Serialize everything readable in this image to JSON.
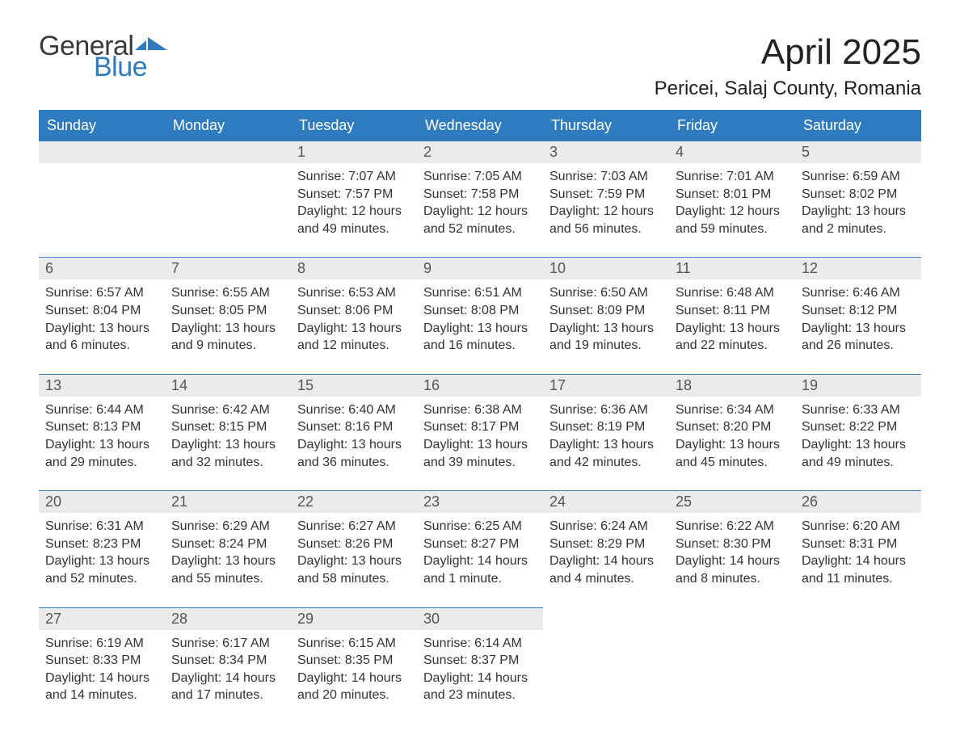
{
  "logo": {
    "line1": "General",
    "line2": "Blue"
  },
  "title": "April 2025",
  "location": "Pericei, Salaj County, Romania",
  "style": {
    "header_bg": "#2f7bbf",
    "header_fg": "#ffffff",
    "row_border": "#2f7bbf",
    "date_bg": "#ebebeb",
    "body_fg": "#333333",
    "page_bg": "#ffffff",
    "title_fontsize": 44,
    "location_fontsize": 24,
    "header_fontsize": 18,
    "detail_fontsize": 16,
    "columns": 7
  },
  "day_names": [
    "Sunday",
    "Monday",
    "Tuesday",
    "Wednesday",
    "Thursday",
    "Friday",
    "Saturday"
  ],
  "cells": [
    {
      "date": "",
      "sunrise": "",
      "sunset": "",
      "daylight": ""
    },
    {
      "date": "",
      "sunrise": "",
      "sunset": "",
      "daylight": ""
    },
    {
      "date": "1",
      "sunrise": "Sunrise: 7:07 AM",
      "sunset": "Sunset: 7:57 PM",
      "daylight": "Daylight: 12 hours and 49 minutes."
    },
    {
      "date": "2",
      "sunrise": "Sunrise: 7:05 AM",
      "sunset": "Sunset: 7:58 PM",
      "daylight": "Daylight: 12 hours and 52 minutes."
    },
    {
      "date": "3",
      "sunrise": "Sunrise: 7:03 AM",
      "sunset": "Sunset: 7:59 PM",
      "daylight": "Daylight: 12 hours and 56 minutes."
    },
    {
      "date": "4",
      "sunrise": "Sunrise: 7:01 AM",
      "sunset": "Sunset: 8:01 PM",
      "daylight": "Daylight: 12 hours and 59 minutes."
    },
    {
      "date": "5",
      "sunrise": "Sunrise: 6:59 AM",
      "sunset": "Sunset: 8:02 PM",
      "daylight": "Daylight: 13 hours and 2 minutes."
    },
    {
      "date": "6",
      "sunrise": "Sunrise: 6:57 AM",
      "sunset": "Sunset: 8:04 PM",
      "daylight": "Daylight: 13 hours and 6 minutes."
    },
    {
      "date": "7",
      "sunrise": "Sunrise: 6:55 AM",
      "sunset": "Sunset: 8:05 PM",
      "daylight": "Daylight: 13 hours and 9 minutes."
    },
    {
      "date": "8",
      "sunrise": "Sunrise: 6:53 AM",
      "sunset": "Sunset: 8:06 PM",
      "daylight": "Daylight: 13 hours and 12 minutes."
    },
    {
      "date": "9",
      "sunrise": "Sunrise: 6:51 AM",
      "sunset": "Sunset: 8:08 PM",
      "daylight": "Daylight: 13 hours and 16 minutes."
    },
    {
      "date": "10",
      "sunrise": "Sunrise: 6:50 AM",
      "sunset": "Sunset: 8:09 PM",
      "daylight": "Daylight: 13 hours and 19 minutes."
    },
    {
      "date": "11",
      "sunrise": "Sunrise: 6:48 AM",
      "sunset": "Sunset: 8:11 PM",
      "daylight": "Daylight: 13 hours and 22 minutes."
    },
    {
      "date": "12",
      "sunrise": "Sunrise: 6:46 AM",
      "sunset": "Sunset: 8:12 PM",
      "daylight": "Daylight: 13 hours and 26 minutes."
    },
    {
      "date": "13",
      "sunrise": "Sunrise: 6:44 AM",
      "sunset": "Sunset: 8:13 PM",
      "daylight": "Daylight: 13 hours and 29 minutes."
    },
    {
      "date": "14",
      "sunrise": "Sunrise: 6:42 AM",
      "sunset": "Sunset: 8:15 PM",
      "daylight": "Daylight: 13 hours and 32 minutes."
    },
    {
      "date": "15",
      "sunrise": "Sunrise: 6:40 AM",
      "sunset": "Sunset: 8:16 PM",
      "daylight": "Daylight: 13 hours and 36 minutes."
    },
    {
      "date": "16",
      "sunrise": "Sunrise: 6:38 AM",
      "sunset": "Sunset: 8:17 PM",
      "daylight": "Daylight: 13 hours and 39 minutes."
    },
    {
      "date": "17",
      "sunrise": "Sunrise: 6:36 AM",
      "sunset": "Sunset: 8:19 PM",
      "daylight": "Daylight: 13 hours and 42 minutes."
    },
    {
      "date": "18",
      "sunrise": "Sunrise: 6:34 AM",
      "sunset": "Sunset: 8:20 PM",
      "daylight": "Daylight: 13 hours and 45 minutes."
    },
    {
      "date": "19",
      "sunrise": "Sunrise: 6:33 AM",
      "sunset": "Sunset: 8:22 PM",
      "daylight": "Daylight: 13 hours and 49 minutes."
    },
    {
      "date": "20",
      "sunrise": "Sunrise: 6:31 AM",
      "sunset": "Sunset: 8:23 PM",
      "daylight": "Daylight: 13 hours and 52 minutes."
    },
    {
      "date": "21",
      "sunrise": "Sunrise: 6:29 AM",
      "sunset": "Sunset: 8:24 PM",
      "daylight": "Daylight: 13 hours and 55 minutes."
    },
    {
      "date": "22",
      "sunrise": "Sunrise: 6:27 AM",
      "sunset": "Sunset: 8:26 PM",
      "daylight": "Daylight: 13 hours and 58 minutes."
    },
    {
      "date": "23",
      "sunrise": "Sunrise: 6:25 AM",
      "sunset": "Sunset: 8:27 PM",
      "daylight": "Daylight: 14 hours and 1 minute."
    },
    {
      "date": "24",
      "sunrise": "Sunrise: 6:24 AM",
      "sunset": "Sunset: 8:29 PM",
      "daylight": "Daylight: 14 hours and 4 minutes."
    },
    {
      "date": "25",
      "sunrise": "Sunrise: 6:22 AM",
      "sunset": "Sunset: 8:30 PM",
      "daylight": "Daylight: 14 hours and 8 minutes."
    },
    {
      "date": "26",
      "sunrise": "Sunrise: 6:20 AM",
      "sunset": "Sunset: 8:31 PM",
      "daylight": "Daylight: 14 hours and 11 minutes."
    },
    {
      "date": "27",
      "sunrise": "Sunrise: 6:19 AM",
      "sunset": "Sunset: 8:33 PM",
      "daylight": "Daylight: 14 hours and 14 minutes."
    },
    {
      "date": "28",
      "sunrise": "Sunrise: 6:17 AM",
      "sunset": "Sunset: 8:34 PM",
      "daylight": "Daylight: 14 hours and 17 minutes."
    },
    {
      "date": "29",
      "sunrise": "Sunrise: 6:15 AM",
      "sunset": "Sunset: 8:35 PM",
      "daylight": "Daylight: 14 hours and 20 minutes."
    },
    {
      "date": "30",
      "sunrise": "Sunrise: 6:14 AM",
      "sunset": "Sunset: 8:37 PM",
      "daylight": "Daylight: 14 hours and 23 minutes."
    }
  ]
}
